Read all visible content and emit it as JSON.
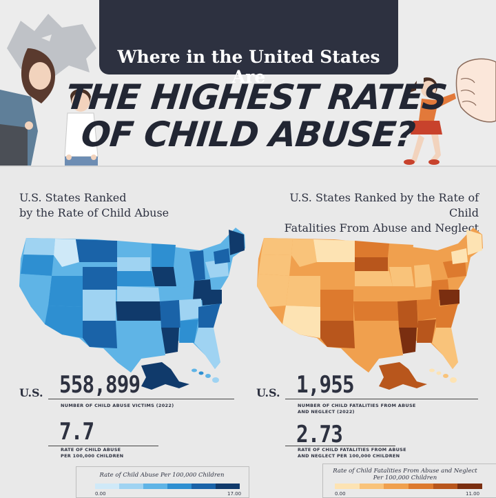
{
  "header": {
    "line1": "Where in the United States Are",
    "line2": "THE HIGHEST RATES",
    "line3": "OF CHILD ABUSE?"
  },
  "left": {
    "title_line1": "U.S. States Ranked",
    "title_line2": "by the Rate of Child Abuse",
    "us_label": "U.S.",
    "stat1_value": "558,899",
    "stat1_caption": "NUMBER OF CHILD ABUSE VICTIMS (2022)",
    "stat2_value": "7.7",
    "stat2_caption_line1": "RATE OF CHILD ABUSE",
    "stat2_caption_line2": "PER 100,000 CHILDREN",
    "legend_title": "Rate of Child Abuse Per 100,000 Children",
    "legend_min": "0.00",
    "legend_max": "17.00",
    "colors": [
      "#cfe9f8",
      "#9fd3f2",
      "#5fb4e6",
      "#2e8fd1",
      "#1a63a8",
      "#103a6b"
    ]
  },
  "right": {
    "title_line1": "U.S. States Ranked by the Rate of Child",
    "title_line2": "Fatalities From Abuse and Neglect",
    "us_label": "U.S.",
    "stat1_value": "1,955",
    "stat1_caption_line1": "NUMBER OF CHILD FATALITIES FROM ABUSE",
    "stat1_caption_line2": "AND NEGLECT (2022)",
    "stat2_value": "2.73",
    "stat2_caption_line1": "RATE OF CHILD FATALITIES FROM ABUSE",
    "stat2_caption_line2": "AND NEGLECT PER 100,000 CHILDREN",
    "legend_title_line1": "Rate of Child Fatalities From Abuse and Neglect",
    "legend_title_line2": "Per 100,000 Children",
    "legend_min": "0.00",
    "legend_max": "11.00",
    "colors": [
      "#fde3b3",
      "#f9c37a",
      "#f0a04e",
      "#dd7a2e",
      "#b8561c",
      "#7a2e10"
    ]
  }
}
